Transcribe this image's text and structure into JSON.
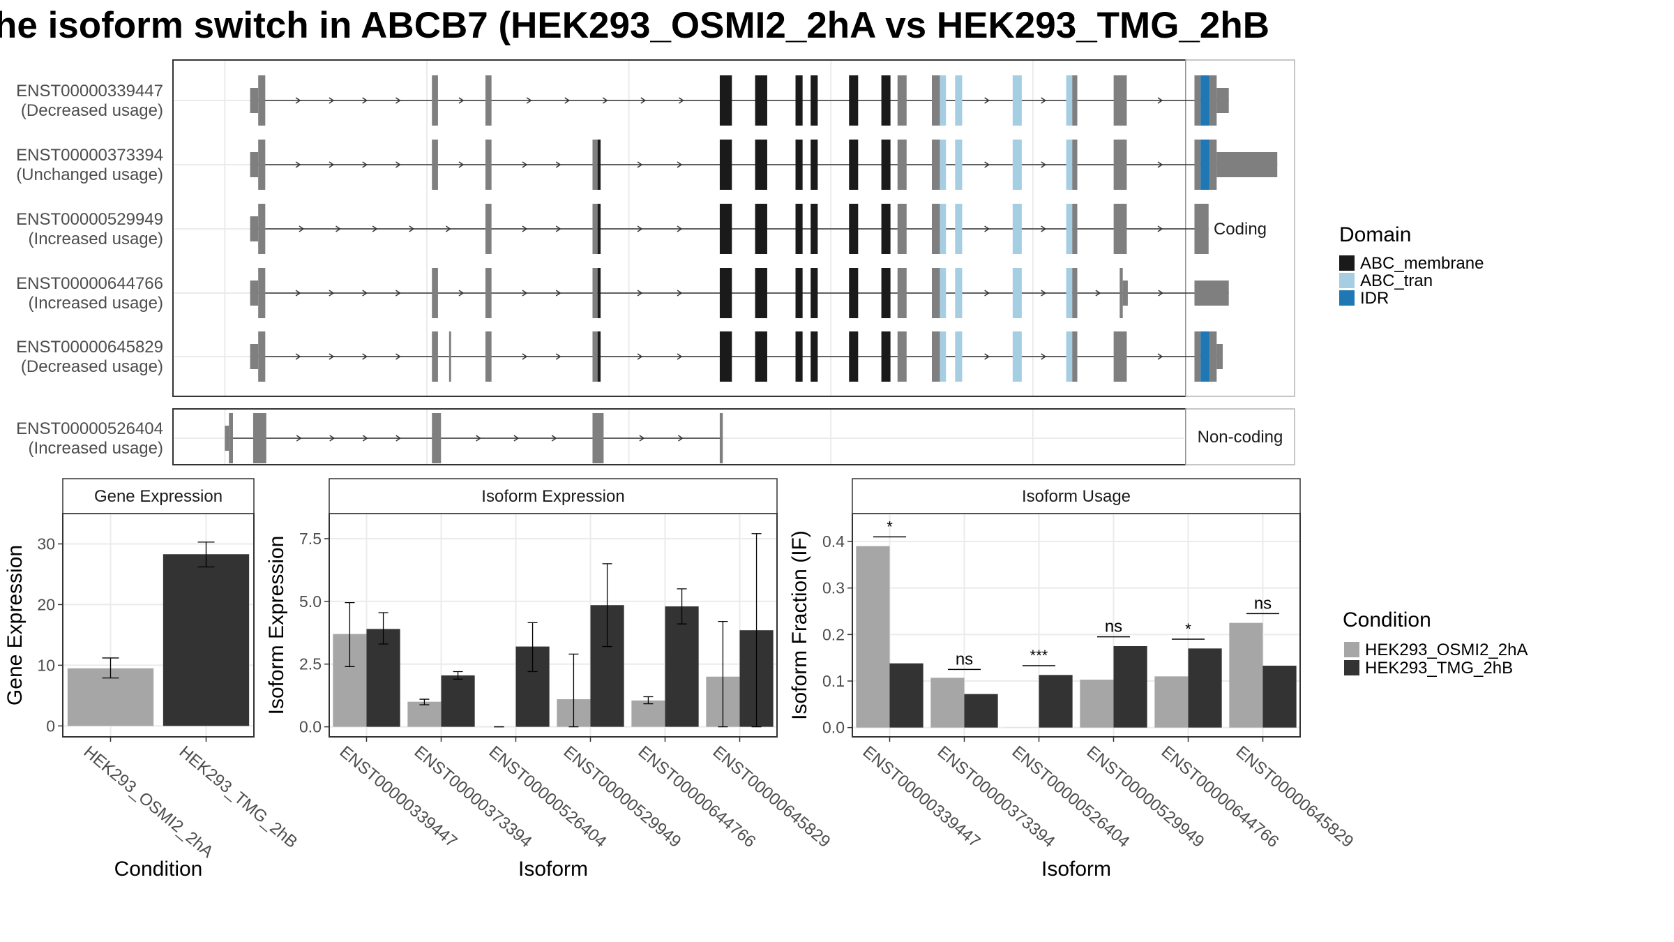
{
  "title": "he isoform switch in ABCB7 (HEK293_OSMI2_2hA vs HEK293_TMG_2hB",
  "colors": {
    "ABC_membrane": "#1a1a1a",
    "ABC_tran": "#a6cee3",
    "IDR": "#1f78b4",
    "no_domain": "#7f7f7f",
    "cond_A": "#a6a6a6",
    "cond_B": "#333333",
    "panel_border": "#333333",
    "strip_border": "#b3b3b3",
    "grid": "#ebebeb"
  },
  "domain_legend": {
    "title": "Domain",
    "items": [
      {
        "label": "ABC_membrane",
        "color_key": "ABC_membrane"
      },
      {
        "label": "ABC_tran",
        "color_key": "ABC_tran"
      },
      {
        "label": "IDR",
        "color_key": "IDR"
      }
    ]
  },
  "condition_legend": {
    "title": "Condition",
    "items": [
      {
        "label": "HEK293_OSMI2_2hA",
        "color_key": "cond_A"
      },
      {
        "label": "HEK293_TMG_2hB",
        "color_key": "cond_B"
      }
    ]
  },
  "chart_data": [
    {
      "type": "gene-structure",
      "facets": [
        "Coding",
        "Non-coding"
      ],
      "x_range": [
        0,
        1000
      ],
      "x_gridlines": [
        50,
        250,
        450,
        650,
        850
      ],
      "transcripts": [
        {
          "id": "ENST00000339447",
          "usage": "(Decreased usage)",
          "facet": "Coding",
          "exons": [
            [
              75,
              83,
              "none",
              "small"
            ],
            [
              83,
              90,
              "none",
              "big"
            ],
            [
              255,
              261,
              "none",
              "big"
            ],
            [
              308,
              314,
              "none",
              "big"
            ],
            [
              540,
              552,
              "ABC_membrane",
              "big"
            ],
            [
              575,
              587,
              "ABC_membrane",
              "big"
            ],
            [
              615,
              622,
              "ABC_membrane",
              "big"
            ],
            [
              630,
              637,
              "ABC_membrane",
              "big"
            ],
            [
              668,
              677,
              "ABC_membrane",
              "big"
            ],
            [
              700,
              709,
              "ABC_membrane",
              "big"
            ],
            [
              716,
              725,
              "none",
              "big"
            ],
            [
              750,
              758,
              "none",
              "big"
            ],
            [
              758,
              764,
              "ABC_tran",
              "big"
            ],
            [
              773,
              780,
              "ABC_tran",
              "big"
            ],
            [
              830,
              839,
              "ABC_tran",
              "big"
            ],
            [
              883,
              889,
              "ABC_tran",
              "big"
            ],
            [
              889,
              894,
              "none",
              "big"
            ],
            [
              930,
              943,
              "none",
              "big"
            ],
            [
              1010,
              1016,
              "none",
              "big"
            ],
            [
              1016,
              1025,
              "IDR",
              "big"
            ],
            [
              1025,
              1032,
              "none",
              "big"
            ],
            [
              1032,
              1044,
              "none",
              "small"
            ]
          ]
        },
        {
          "id": "ENST00000373394",
          "usage": "(Unchanged usage)",
          "facet": "Coding",
          "exons": [
            [
              75,
              83,
              "none",
              "small"
            ],
            [
              83,
              90,
              "none",
              "big"
            ],
            [
              255,
              261,
              "none",
              "big"
            ],
            [
              308,
              314,
              "none",
              "big"
            ],
            [
              414,
              419,
              "none",
              "big"
            ],
            [
              419,
              422,
              "ABC_membrane",
              "big"
            ],
            [
              540,
              552,
              "ABC_membrane",
              "big"
            ],
            [
              575,
              587,
              "ABC_membrane",
              "big"
            ],
            [
              615,
              622,
              "ABC_membrane",
              "big"
            ],
            [
              630,
              637,
              "ABC_membrane",
              "big"
            ],
            [
              668,
              677,
              "ABC_membrane",
              "big"
            ],
            [
              700,
              709,
              "ABC_membrane",
              "big"
            ],
            [
              716,
              725,
              "none",
              "big"
            ],
            [
              750,
              758,
              "none",
              "big"
            ],
            [
              758,
              764,
              "ABC_tran",
              "big"
            ],
            [
              773,
              780,
              "ABC_tran",
              "big"
            ],
            [
              830,
              839,
              "ABC_tran",
              "big"
            ],
            [
              883,
              889,
              "ABC_tran",
              "big"
            ],
            [
              889,
              894,
              "none",
              "big"
            ],
            [
              930,
              943,
              "none",
              "big"
            ],
            [
              1010,
              1016,
              "none",
              "big"
            ],
            [
              1016,
              1025,
              "IDR",
              "big"
            ],
            [
              1025,
              1032,
              "none",
              "big"
            ],
            [
              1032,
              1092,
              "none",
              "small"
            ]
          ]
        },
        {
          "id": "ENST00000529949",
          "usage": "(Increased usage)",
          "facet": "Coding",
          "exons": [
            [
              75,
              83,
              "none",
              "small"
            ],
            [
              83,
              90,
              "none",
              "big"
            ],
            [
              308,
              314,
              "none",
              "big"
            ],
            [
              414,
              419,
              "none",
              "big"
            ],
            [
              419,
              422,
              "ABC_membrane",
              "big"
            ],
            [
              540,
              552,
              "ABC_membrane",
              "big"
            ],
            [
              575,
              587,
              "ABC_membrane",
              "big"
            ],
            [
              615,
              622,
              "ABC_membrane",
              "big"
            ],
            [
              630,
              637,
              "ABC_membrane",
              "big"
            ],
            [
              668,
              677,
              "ABC_membrane",
              "big"
            ],
            [
              700,
              709,
              "ABC_membrane",
              "big"
            ],
            [
              716,
              725,
              "none",
              "big"
            ],
            [
              750,
              758,
              "none",
              "big"
            ],
            [
              758,
              764,
              "ABC_tran",
              "big"
            ],
            [
              773,
              780,
              "ABC_tran",
              "big"
            ],
            [
              830,
              839,
              "ABC_tran",
              "big"
            ],
            [
              883,
              889,
              "ABC_tran",
              "big"
            ],
            [
              889,
              894,
              "none",
              "big"
            ],
            [
              930,
              943,
              "none",
              "big"
            ],
            [
              1010,
              1024,
              "none",
              "big"
            ]
          ]
        },
        {
          "id": "ENST00000644766",
          "usage": "(Increased usage)",
          "facet": "Coding",
          "exons": [
            [
              75,
              83,
              "none",
              "small"
            ],
            [
              83,
              90,
              "none",
              "big"
            ],
            [
              255,
              261,
              "none",
              "big"
            ],
            [
              308,
              314,
              "none",
              "big"
            ],
            [
              414,
              419,
              "none",
              "big"
            ],
            [
              419,
              422,
              "ABC_membrane",
              "big"
            ],
            [
              540,
              552,
              "ABC_membrane",
              "big"
            ],
            [
              575,
              587,
              "ABC_membrane",
              "big"
            ],
            [
              615,
              622,
              "ABC_membrane",
              "big"
            ],
            [
              630,
              637,
              "ABC_membrane",
              "big"
            ],
            [
              668,
              677,
              "ABC_membrane",
              "big"
            ],
            [
              700,
              709,
              "ABC_membrane",
              "big"
            ],
            [
              716,
              725,
              "none",
              "big"
            ],
            [
              750,
              758,
              "none",
              "big"
            ],
            [
              758,
              764,
              "ABC_tran",
              "big"
            ],
            [
              773,
              780,
              "ABC_tran",
              "big"
            ],
            [
              830,
              839,
              "ABC_tran",
              "big"
            ],
            [
              883,
              889,
              "ABC_tran",
              "big"
            ],
            [
              889,
              894,
              "none",
              "big"
            ],
            [
              936,
              939,
              "none",
              "big"
            ],
            [
              939,
              944,
              "none",
              "small"
            ],
            [
              1010,
              1044,
              "none",
              "small"
            ]
          ]
        },
        {
          "id": "ENST00000645829",
          "usage": "(Decreased usage)",
          "facet": "Coding",
          "exons": [
            [
              75,
              83,
              "none",
              "small"
            ],
            [
              83,
              90,
              "none",
              "big"
            ],
            [
              255,
              261,
              "none",
              "big"
            ],
            [
              272,
              274,
              "none",
              "big"
            ],
            [
              308,
              314,
              "none",
              "big"
            ],
            [
              414,
              419,
              "none",
              "big"
            ],
            [
              419,
              422,
              "ABC_membrane",
              "big"
            ],
            [
              540,
              552,
              "ABC_membrane",
              "big"
            ],
            [
              575,
              587,
              "ABC_membrane",
              "big"
            ],
            [
              615,
              622,
              "ABC_membrane",
              "big"
            ],
            [
              630,
              637,
              "ABC_membrane",
              "big"
            ],
            [
              668,
              677,
              "ABC_membrane",
              "big"
            ],
            [
              700,
              709,
              "ABC_membrane",
              "big"
            ],
            [
              716,
              725,
              "none",
              "big"
            ],
            [
              750,
              758,
              "none",
              "big"
            ],
            [
              758,
              764,
              "ABC_tran",
              "big"
            ],
            [
              773,
              780,
              "ABC_tran",
              "big"
            ],
            [
              830,
              839,
              "ABC_tran",
              "big"
            ],
            [
              883,
              889,
              "ABC_tran",
              "big"
            ],
            [
              889,
              894,
              "none",
              "big"
            ],
            [
              930,
              943,
              "none",
              "big"
            ],
            [
              1010,
              1016,
              "none",
              "big"
            ],
            [
              1016,
              1025,
              "IDR",
              "big"
            ],
            [
              1025,
              1032,
              "none",
              "big"
            ],
            [
              1032,
              1038,
              "none",
              "small"
            ]
          ]
        },
        {
          "id": "ENST00000526404",
          "usage": "(Increased usage)",
          "facet": "Non-coding",
          "exons": [
            [
              50,
              54,
              "none",
              "small"
            ],
            [
              54,
              58,
              "none",
              "big"
            ],
            [
              78,
              91,
              "none",
              "big"
            ],
            [
              255,
              264,
              "none",
              "big"
            ],
            [
              414,
              425,
              "none",
              "big"
            ],
            [
              540,
              543,
              "none",
              "big"
            ]
          ]
        }
      ]
    },
    {
      "type": "bar",
      "panel": "Gene Expression",
      "xlabel": "Condition",
      "ylabel": "Gene Expression",
      "ylim": [
        -1.8,
        35
      ],
      "yticks": [
        0,
        10,
        20,
        30
      ],
      "categories": [
        "HEK293_OSMI2_2hA",
        "HEK293_TMG_2hB"
      ],
      "values": [
        9.5,
        28.3
      ],
      "error_low": [
        7.9,
        26.2
      ],
      "error_high": [
        11.2,
        30.3
      ],
      "colors": [
        "cond_A",
        "cond_B"
      ]
    },
    {
      "type": "bar",
      "panel": "Isoform Expression",
      "xlabel": "Isoform",
      "ylabel": "Isoform Expression",
      "ylim": [
        -0.4,
        8.5
      ],
      "yticks": [
        "0.0",
        "2.5",
        "5.0",
        "7.5"
      ],
      "categories": [
        "ENST00000339447",
        "ENST00000373394",
        "ENST00000526404",
        "ENST00000529949",
        "ENST00000644766",
        "ENST00000645829"
      ],
      "series": [
        {
          "name": "HEK293_OSMI2_2hA",
          "color_key": "cond_A",
          "values": [
            3.7,
            1.0,
            0.0,
            1.1,
            1.05,
            2.0
          ],
          "error_low": [
            2.4,
            0.88,
            0.0,
            0.0,
            0.92,
            0.0
          ],
          "error_high": [
            4.95,
            1.1,
            0.0,
            2.9,
            1.2,
            4.2
          ]
        },
        {
          "name": "HEK293_TMG_2hB",
          "color_key": "cond_B",
          "values": [
            3.9,
            2.05,
            3.2,
            4.85,
            4.8,
            3.85
          ],
          "error_low": [
            3.3,
            1.9,
            2.2,
            3.2,
            4.1,
            0.0
          ],
          "error_high": [
            4.55,
            2.2,
            4.15,
            6.5,
            5.5,
            7.7
          ]
        }
      ]
    },
    {
      "type": "bar",
      "panel": "Isoform Usage",
      "xlabel": "Isoform",
      "ylabel": "Isoform Fraction (IF)",
      "ylim": [
        -0.02,
        0.46
      ],
      "yticks": [
        "0.0",
        "0.1",
        "0.2",
        "0.3",
        "0.4"
      ],
      "categories": [
        "ENST00000339447",
        "ENST00000373394",
        "ENST00000526404",
        "ENST00000529949",
        "ENST00000644766",
        "ENST00000645829"
      ],
      "series": [
        {
          "name": "HEK293_OSMI2_2hA",
          "color_key": "cond_A",
          "values": [
            0.39,
            0.107,
            0.0,
            0.103,
            0.11,
            0.225
          ]
        },
        {
          "name": "HEK293_TMG_2hB",
          "color_key": "cond_B",
          "values": [
            0.138,
            0.072,
            0.113,
            0.175,
            0.17,
            0.133
          ]
        }
      ],
      "significance": [
        {
          "label": "*",
          "y": 0.41
        },
        {
          "label": "ns",
          "y": 0.125
        },
        {
          "label": "***",
          "y": 0.133
        },
        {
          "label": "ns",
          "y": 0.195
        },
        {
          "label": "*",
          "y": 0.19
        },
        {
          "label": "ns",
          "y": 0.245
        }
      ]
    }
  ]
}
